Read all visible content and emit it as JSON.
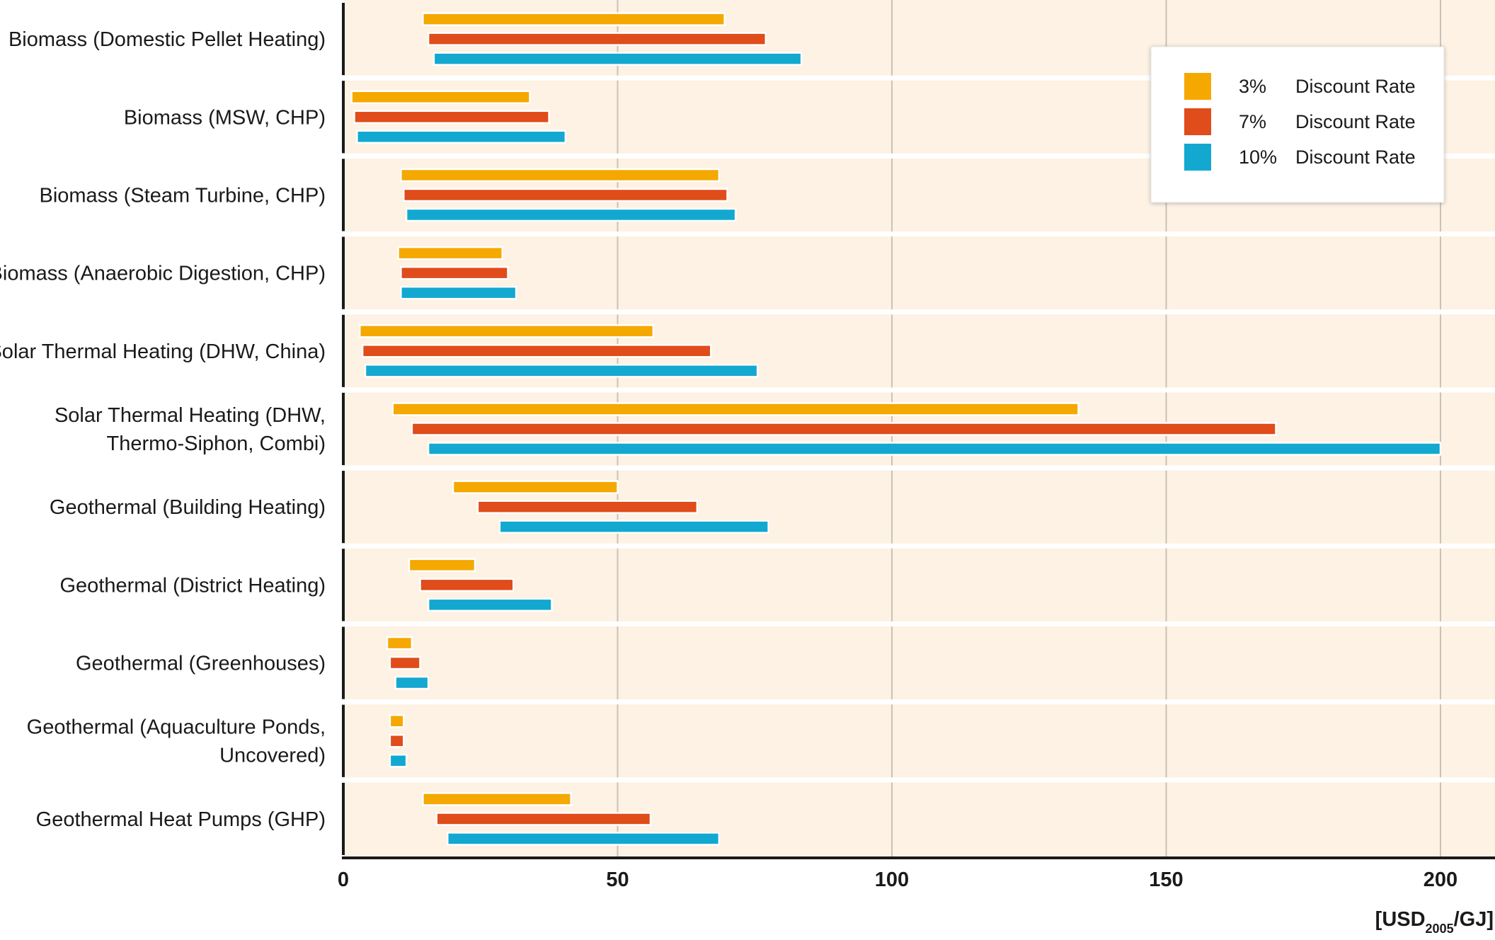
{
  "chart_data": {
    "type": "bar",
    "orientation": "horizontal",
    "bar_style": "floating-range",
    "categories": [
      "Biomass (Domestic Pellet Heating)",
      "Biomass (MSW, CHP)",
      "Biomass (Steam Turbine, CHP)",
      "Biomass (Anaerobic Digestion, CHP)",
      "Solar Thermal Heating (DHW, China)",
      "Solar Thermal Heating (DHW,\nThermo-Siphon, Combi)",
      "Geothermal (Building Heating)",
      "Geothermal (District Heating)",
      "Geothermal (Greenhouses)",
      "Geothermal (Aquaculture Ponds,\nUncovered)",
      "Geothermal Heat Pumps (GHP)"
    ],
    "series": [
      {
        "name": "3%",
        "color": "#f5a800",
        "ranges": [
          [
            14.5,
            69.5
          ],
          [
            1.5,
            34
          ],
          [
            10.5,
            68.5
          ],
          [
            10,
            29
          ],
          [
            3,
            56.5
          ],
          [
            9,
            134
          ],
          [
            20,
            50
          ],
          [
            12,
            24
          ],
          [
            8,
            12.5
          ],
          [
            8.5,
            11
          ],
          [
            14.5,
            41.5
          ]
        ]
      },
      {
        "name": "7%",
        "color": "#e04c1a",
        "ranges": [
          [
            15.5,
            77
          ],
          [
            2,
            37.5
          ],
          [
            11,
            70
          ],
          [
            10.5,
            30
          ],
          [
            3.5,
            67
          ],
          [
            12.5,
            170
          ],
          [
            24.5,
            64.5
          ],
          [
            14,
            31
          ],
          [
            8.5,
            14
          ],
          [
            8.5,
            11
          ],
          [
            17,
            56
          ]
        ]
      },
      {
        "name": "10%",
        "color": "#12a8d0",
        "ranges": [
          [
            16.5,
            83.5
          ],
          [
            2.5,
            40.5
          ],
          [
            11.5,
            71.5
          ],
          [
            10.5,
            31.5
          ],
          [
            4,
            75.5
          ],
          [
            15.5,
            200
          ],
          [
            28.5,
            77.5
          ],
          [
            15.5,
            38
          ],
          [
            9.5,
            15.5
          ],
          [
            8.5,
            11.5
          ],
          [
            19,
            68.5
          ]
        ]
      }
    ],
    "legend": {
      "position": "top-right",
      "suffix": "Discount Rate"
    },
    "x_axis": {
      "xlim": [
        0,
        210
      ],
      "ticks": [
        0,
        50,
        100,
        150,
        200
      ],
      "unit": {
        "main": "[USD",
        "sub": "2005",
        "tail": "/GJ]"
      }
    },
    "grid": true,
    "background_color": "#fdf2e3",
    "separator_color": "#ffffff"
  }
}
